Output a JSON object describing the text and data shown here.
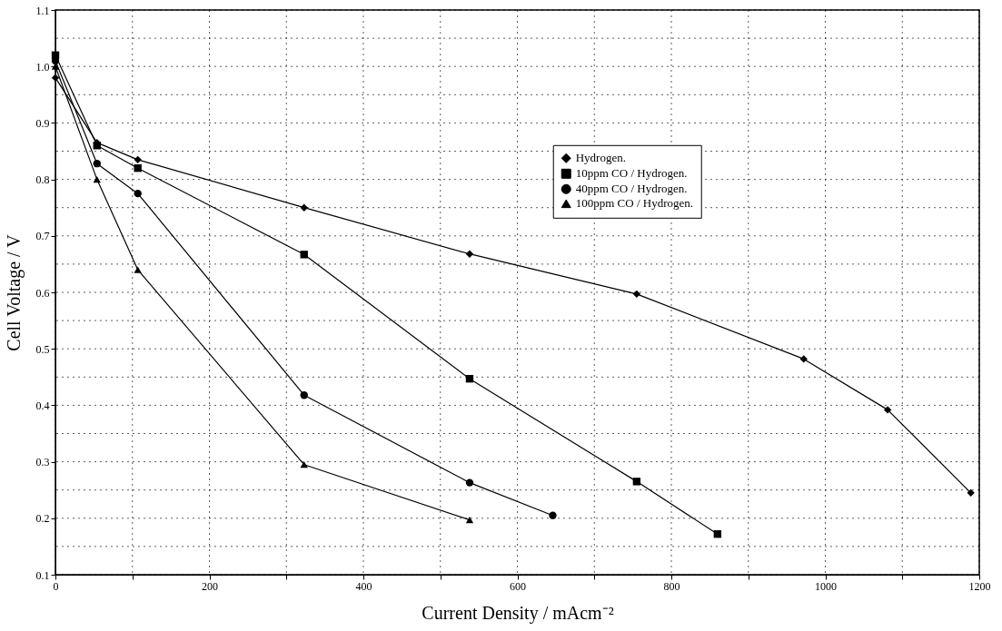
{
  "chart_data": {
    "type": "line",
    "xlabel": "Current Density / mAcm⁻²",
    "ylabel": "Cell Voltage / V",
    "xlim": [
      0,
      1200
    ],
    "ylim": [
      0.1,
      1.1
    ],
    "xticks": [
      0,
      {
        "value": 100,
        "label": null
      },
      200,
      {
        "value": 300,
        "label": null
      },
      400,
      {
        "value": 500,
        "label": null
      },
      600,
      {
        "value": 700,
        "label": null
      },
      800,
      {
        "value": 900,
        "label": null
      },
      1000,
      {
        "value": 1100,
        "label": null
      },
      1200
    ],
    "yticks": [
      {
        "value": 0.1,
        "label": "0.1"
      },
      {
        "value": 0.15,
        "label": null
      },
      {
        "value": 0.2,
        "label": "0.2"
      },
      {
        "value": 0.25,
        "label": null
      },
      {
        "value": 0.3,
        "label": "0.3"
      },
      {
        "value": 0.35,
        "label": null
      },
      {
        "value": 0.4,
        "label": "0.4"
      },
      {
        "value": 0.45,
        "label": null
      },
      {
        "value": 0.5,
        "label": "0.5"
      },
      {
        "value": 0.55,
        "label": null
      },
      {
        "value": 0.6,
        "label": "0.6"
      },
      {
        "value": 0.65,
        "label": null
      },
      {
        "value": 0.7,
        "label": "0.7"
      },
      {
        "value": 0.75,
        "label": null
      },
      {
        "value": 0.8,
        "label": "0.8"
      },
      {
        "value": 0.85,
        "label": null
      },
      {
        "value": 0.9,
        "label": "0.9"
      },
      {
        "value": 0.95,
        "label": null
      },
      {
        "value": 1.0,
        "label": "1.0"
      },
      {
        "value": 1.05,
        "label": null
      },
      {
        "value": 1.1,
        "label": "1.1"
      }
    ],
    "grid": true,
    "legend": "right",
    "line_style": "solid",
    "series": [
      {
        "name": "Hydrogen.",
        "color": "#000000",
        "marker": "diamond",
        "x": [
          0,
          54,
          107,
          323,
          538,
          755,
          972,
          1081,
          1189
        ],
        "values": [
          0.98,
          0.865,
          0.835,
          0.75,
          0.668,
          0.597,
          0.482,
          0.392,
          0.245
        ]
      },
      {
        "name": "10ppm CO / Hydrogen.",
        "color": "#000000",
        "marker": "square",
        "x": [
          0,
          54,
          107,
          323,
          538,
          755,
          860
        ],
        "values": [
          1.02,
          0.86,
          0.82,
          0.667,
          0.447,
          0.265,
          0.172
        ]
      },
      {
        "name": "40ppm CO / Hydrogen.",
        "color": "#000000",
        "marker": "circle",
        "x": [
          0,
          54,
          107,
          323,
          538,
          646
        ],
        "values": [
          1.01,
          0.828,
          0.775,
          0.418,
          0.263,
          0.205
        ]
      },
      {
        "name": "100ppm CO / Hydrogen.",
        "color": "#000000",
        "marker": "triangle",
        "x": [
          0,
          54,
          107,
          323,
          538
        ],
        "values": [
          1.0,
          0.8,
          0.64,
          0.295,
          0.197
        ]
      }
    ]
  }
}
